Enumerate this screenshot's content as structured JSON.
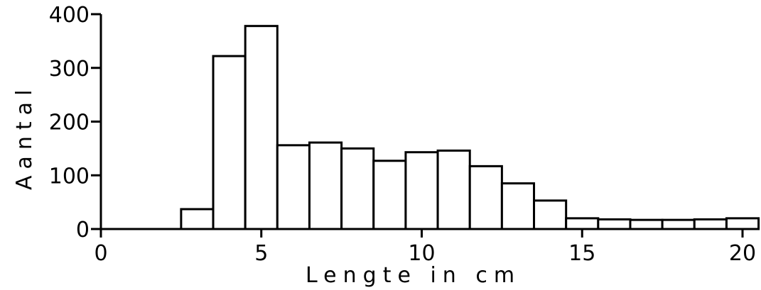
{
  "chart_data": {
    "type": "bar",
    "xlabel": "Lengte in cm",
    "ylabel": "Aantal",
    "xlim": [
      0,
      20
    ],
    "ylim": [
      0,
      400
    ],
    "xticks": [
      "0",
      "5",
      "10",
      "15",
      "20"
    ],
    "yticks": [
      "0",
      "100",
      "200",
      "300",
      "400"
    ],
    "bin_width": 1,
    "bins": [
      {
        "start": 2.5,
        "value": 37
      },
      {
        "start": 3.5,
        "value": 322
      },
      {
        "start": 4.5,
        "value": 378
      },
      {
        "start": 5.5,
        "value": 156
      },
      {
        "start": 6.5,
        "value": 161
      },
      {
        "start": 7.5,
        "value": 150
      },
      {
        "start": 8.5,
        "value": 127
      },
      {
        "start": 9.5,
        "value": 143
      },
      {
        "start": 10.5,
        "value": 146
      },
      {
        "start": 11.5,
        "value": 117
      },
      {
        "start": 12.5,
        "value": 85
      },
      {
        "start": 13.5,
        "value": 53
      },
      {
        "start": 14.5,
        "value": 20
      },
      {
        "start": 15.5,
        "value": 18
      },
      {
        "start": 16.5,
        "value": 17
      },
      {
        "start": 17.5,
        "value": 17
      },
      {
        "start": 18.5,
        "value": 18
      },
      {
        "start": 19.5,
        "value": 20
      }
    ],
    "grid": false
  }
}
